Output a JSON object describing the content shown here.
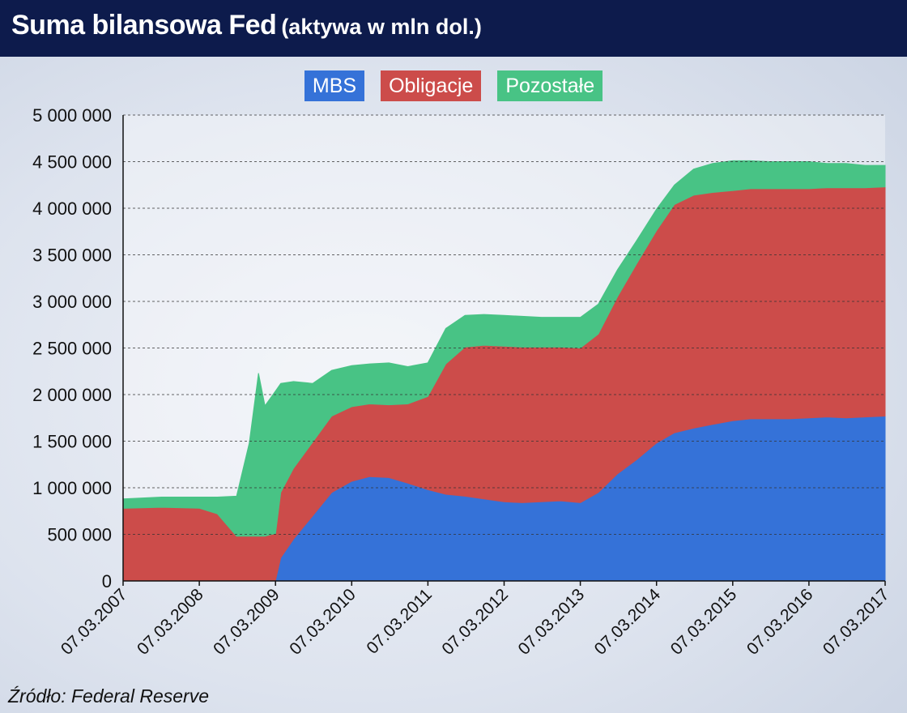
{
  "header": {
    "title": "Suma bilansowa Fed",
    "subtitle": "(aktywa w mln dol.)"
  },
  "source": "Źródło: Federal Reserve",
  "colors": {
    "header_bg": "#0d1b4c",
    "mbs": "#3572d8",
    "obligacje": "#cc4c4a",
    "pozostale": "#48c385"
  },
  "chart_data": {
    "type": "area",
    "stacked": true,
    "title": "Suma bilansowa Fed",
    "xlabel": "",
    "ylabel": "",
    "ylim": [
      0,
      5000000
    ],
    "yticks": [
      0,
      500000,
      1000000,
      1500000,
      2000000,
      2500000,
      3000000,
      3500000,
      4000000,
      4500000,
      5000000
    ],
    "ytick_labels": [
      "0",
      "500 000",
      "1 000 000",
      "1 500 000",
      "2 000 000",
      "2 500 000",
      "3 000 000",
      "3 500 000",
      "4 000 000",
      "4 500 000",
      "5 000 000"
    ],
    "xlim": [
      "2007-03-07",
      "2017-03-07"
    ],
    "xtick_labels": [
      "07.03.2007",
      "07.03.2008",
      "07.03.2009",
      "07.03.2010",
      "07.03.2011",
      "07.03.2012",
      "07.03.2013",
      "07.03.2014",
      "07.03.2015",
      "07.03.2016",
      "07.03.2017"
    ],
    "grid": "horizontal-dashed",
    "legend_position": "top-center",
    "x": [
      "2007-03-07",
      "2007-09-07",
      "2008-03-07",
      "2008-06-01",
      "2008-09-01",
      "2008-11-01",
      "2008-12-15",
      "2009-01-15",
      "2009-03-07",
      "2009-04-01",
      "2009-06-01",
      "2009-09-01",
      "2009-12-01",
      "2010-03-07",
      "2010-06-01",
      "2010-09-01",
      "2010-12-01",
      "2011-03-07",
      "2011-06-01",
      "2011-09-01",
      "2011-12-01",
      "2012-03-07",
      "2012-06-01",
      "2012-09-01",
      "2012-12-01",
      "2013-03-07",
      "2013-06-01",
      "2013-09-01",
      "2013-12-01",
      "2014-03-07",
      "2014-06-01",
      "2014-09-01",
      "2014-12-01",
      "2015-03-07",
      "2015-06-01",
      "2015-09-01",
      "2015-12-01",
      "2016-03-07",
      "2016-06-01",
      "2016-09-01",
      "2016-12-01",
      "2017-03-07"
    ],
    "series": [
      {
        "name": "MBS",
        "color": "#3572d8",
        "values": [
          0,
          0,
          0,
          0,
          0,
          0,
          0,
          0,
          10000,
          250000,
          450000,
          700000,
          950000,
          1070000,
          1120000,
          1110000,
          1050000,
          980000,
          930000,
          910000,
          880000,
          850000,
          840000,
          850000,
          860000,
          840000,
          950000,
          1150000,
          1300000,
          1480000,
          1590000,
          1640000,
          1680000,
          1720000,
          1740000,
          1740000,
          1740000,
          1750000,
          1760000,
          1750000,
          1760000,
          1770000
        ]
      },
      {
        "name": "Obligacje",
        "color": "#cc4c4a",
        "values": [
          780000,
          790000,
          780000,
          720000,
          480000,
          480000,
          480000,
          480000,
          500000,
          700000,
          760000,
          790000,
          820000,
          800000,
          780000,
          780000,
          850000,
          1000000,
          1400000,
          1600000,
          1650000,
          1670000,
          1670000,
          1660000,
          1650000,
          1660000,
          1700000,
          1900000,
          2100000,
          2280000,
          2450000,
          2500000,
          2490000,
          2470000,
          2470000,
          2470000,
          2470000,
          2460000,
          2460000,
          2470000,
          2460000,
          2460000
        ]
      },
      {
        "name": "Pozostałe",
        "color": "#48c385",
        "values": [
          100000,
          110000,
          120000,
          180000,
          430000,
          1000000,
          1750000,
          1400000,
          1530000,
          1170000,
          930000,
          630000,
          490000,
          440000,
          430000,
          450000,
          400000,
          360000,
          380000,
          340000,
          330000,
          330000,
          330000,
          320000,
          320000,
          330000,
          320000,
          290000,
          250000,
          230000,
          210000,
          280000,
          310000,
          320000,
          300000,
          290000,
          290000,
          290000,
          260000,
          260000,
          240000,
          230000
        ]
      }
    ]
  }
}
